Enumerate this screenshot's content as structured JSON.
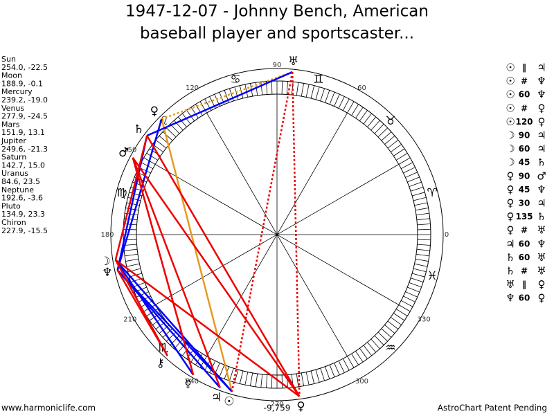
{
  "title": [
    "1947-12-07 - Johnny Bench, American",
    "baseball player and sportscaster..."
  ],
  "planets": [
    {
      "name": "Sun",
      "position": "254.0, -22.5",
      "glyph": "☉"
    },
    {
      "name": "Moon",
      "position": "188.9, -0.1",
      "glyph": "☽"
    },
    {
      "name": "Mercury",
      "position": "239.2, -19.0",
      "glyph": "☿"
    },
    {
      "name": "Venus",
      "position": "277.9, -24.5",
      "glyph": "♀"
    },
    {
      "name": "Mars",
      "position": "151.9, 13.1",
      "glyph": "♂"
    },
    {
      "name": "Jupiter",
      "position": "249.6, -21.3",
      "glyph": "♃"
    },
    {
      "name": "Saturn",
      "position": "142.7, 15.0",
      "glyph": "♄"
    },
    {
      "name": "Uranus",
      "position": "84.6, 23.5",
      "glyph": "♅"
    },
    {
      "name": "Neptune",
      "position": "192.6, -3.6",
      "glyph": "♆"
    },
    {
      "name": "Pluto",
      "position": "134.9, 23.3",
      "glyph": "♀"
    },
    {
      "name": "Chiron",
      "position": "227.9, -15.5",
      "glyph": "⚷"
    }
  ],
  "aspects": [
    [
      "☉",
      "‖",
      "♃"
    ],
    [
      "☉",
      "#",
      "♆"
    ],
    [
      "☉",
      "60",
      "♆"
    ],
    [
      "☉",
      "#",
      "♀"
    ],
    [
      "☉",
      "120",
      "♀"
    ],
    [
      "☽",
      "90",
      "♃"
    ],
    [
      "☽",
      "60",
      "♃"
    ],
    [
      "☽",
      "45",
      "♄"
    ],
    [
      "♀",
      "90",
      "♂"
    ],
    [
      "♀",
      "45",
      "♆"
    ],
    [
      "♀",
      "30",
      "♃"
    ],
    [
      "♀",
      "135",
      "♄"
    ],
    [
      "♀",
      "#",
      "♅"
    ],
    [
      "♃",
      "60",
      "♆"
    ],
    [
      "♄",
      "60",
      "♅"
    ],
    [
      "♄",
      "#",
      "♅"
    ],
    [
      "♅",
      "‖",
      "♀"
    ],
    [
      "♆",
      "60",
      "♀"
    ]
  ],
  "degree_labels": [
    "0",
    "60",
    "90",
    "120",
    "150",
    "180",
    "210",
    "240",
    "270",
    "300",
    "330"
  ],
  "signs": [
    "♈",
    "♉",
    "♊",
    "♋",
    "♌",
    "♍",
    "♏",
    "♒",
    "♓"
  ],
  "footer": {
    "left": "www.harmoniclife.com",
    "center": "-9,759",
    "right": "AstroChart Patent Pending"
  }
}
